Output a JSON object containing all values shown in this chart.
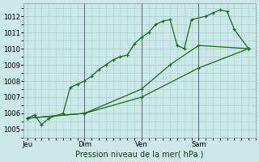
{
  "xlabel": "Pression niveau de la mer( hPa )",
  "background_color": "#cce8e8",
  "grid_color": "#aacccc",
  "line_color": "#1a6b1a",
  "ylim": [
    1004.5,
    1012.8
  ],
  "yticks": [
    1005,
    1006,
    1007,
    1008,
    1009,
    1010,
    1011,
    1012
  ],
  "xtick_labels": [
    "Jeu",
    "Dim",
    "Ven",
    "Sam"
  ],
  "xtick_positions": [
    0,
    8,
    16,
    24
  ],
  "xlim": [
    -0.5,
    32
  ],
  "vlines": [
    8,
    16,
    24
  ],
  "line1_x": [
    0,
    1,
    2,
    3,
    5,
    6,
    7,
    8,
    9,
    10,
    11,
    12,
    13,
    14,
    15,
    16,
    17,
    18,
    19,
    20,
    21,
    22,
    23,
    25,
    26,
    27,
    28,
    29,
    31
  ],
  "line1_y": [
    1005.7,
    1005.9,
    1005.3,
    1005.7,
    1006.0,
    1007.6,
    1007.8,
    1008.0,
    1008.3,
    1008.7,
    1009.0,
    1009.3,
    1009.5,
    1009.6,
    1010.3,
    1010.7,
    1011.0,
    1011.5,
    1011.7,
    1011.8,
    1010.2,
    1010.0,
    1011.8,
    1012.0,
    1012.2,
    1012.4,
    1012.3,
    1011.2,
    1010.0
  ],
  "line2_x": [
    0,
    8,
    16,
    20,
    24,
    31
  ],
  "line2_y": [
    1005.7,
    1006.0,
    1007.5,
    1009.0,
    1010.2,
    1010.0
  ],
  "line3_x": [
    0,
    8,
    16,
    24,
    31
  ],
  "line3_y": [
    1005.7,
    1006.0,
    1007.0,
    1008.8,
    1010.0
  ],
  "figsize": [
    3.2,
    2.0
  ],
  "dpi": 100
}
